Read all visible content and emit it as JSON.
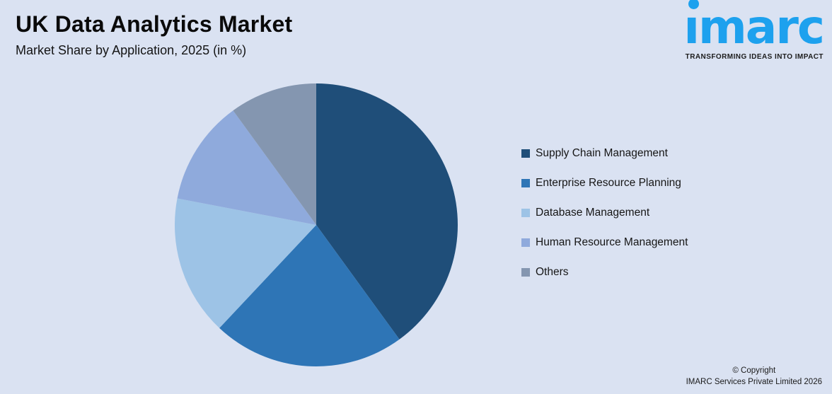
{
  "header": {
    "title": "UK Data Analytics Market",
    "subtitle": "Market Share by Application, 2025 (in %)"
  },
  "logo": {
    "brand": "imarc",
    "tagline": "TRANSFORMING IDEAS INTO IMPACT",
    "brand_color": "#1da1ee"
  },
  "chart_data": {
    "type": "pie",
    "title": "UK Data Analytics Market",
    "subtitle": "Market Share by Application, 2025 (in %)",
    "unit": "%",
    "start_angle_deg": 0,
    "direction": "clockwise",
    "legend_position": "right",
    "slices": [
      {
        "label": "Supply Chain Management",
        "value": 40,
        "color": "#1F4E79"
      },
      {
        "label": "Enterprise Resource Planning",
        "value": 22,
        "color": "#2E75B6"
      },
      {
        "label": "Database Management",
        "value": 16,
        "color": "#9DC3E6"
      },
      {
        "label": "Human Resource Management",
        "value": 12,
        "color": "#8FAADC"
      },
      {
        "label": "Others",
        "value": 10,
        "color": "#8496B0"
      }
    ]
  },
  "footer": {
    "copyright_line1": "© Copyright",
    "copyright_line2": "IMARC Services Private Limited 2026"
  },
  "theme": {
    "background": "#DAE2F2"
  }
}
